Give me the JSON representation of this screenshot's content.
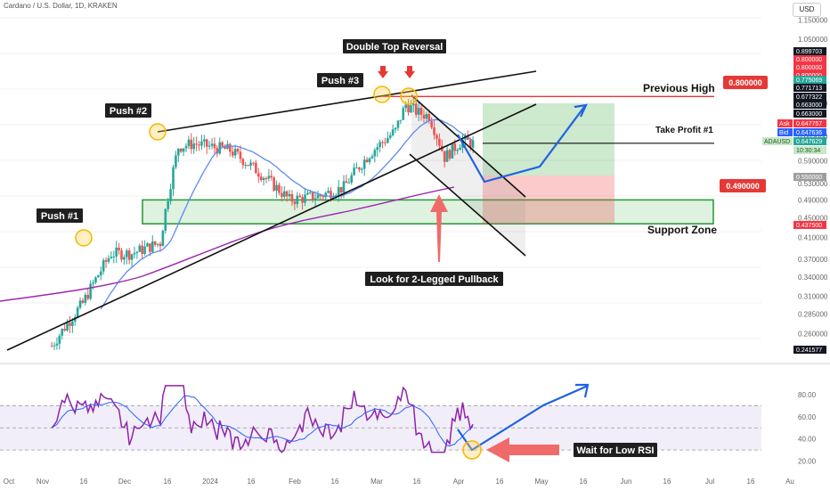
{
  "header": {
    "symbol_title": "Cardano / U.S. Dollar, 1D, KRAKEN",
    "currency_button": "USD"
  },
  "colors": {
    "candle_up": "#26a69a",
    "candle_down": "#ef5350",
    "ma_fast": "#5b8def",
    "ma_slow": "#9c27b0",
    "rsi_line": "#8e24aa",
    "rsi_signal": "#2962ff",
    "support_zone": "#2e9e3e",
    "resistance": "#e53935",
    "projection_arrow": "#1e63e0",
    "callout_bg": "#1f1f1f",
    "highlight_circle": "#f5b800"
  },
  "chart_data": [
    {
      "type": "candlestick",
      "title": "Cardano / U.S. Dollar, 1D, KRAKEN",
      "price_scale": "log",
      "ylim": [
        0.235,
        1.2
      ],
      "y_ticks": [
        "1.150000",
        "1.050000",
        "0.775069",
        "0.663000",
        "0.590000",
        "0.530000",
        "0.490000",
        "0.450000",
        "0.410000",
        "0.370000",
        "0.340000",
        "0.310000",
        "0.285000",
        "0.260000"
      ],
      "x_ticks": [
        "Oct",
        "Nov",
        "16",
        "Dec",
        "16",
        "2024",
        "16",
        "Feb",
        "16",
        "Mar",
        "16",
        "Apr",
        "16",
        "May",
        "16",
        "Jun",
        "16",
        "Jul",
        "16",
        "Au"
      ],
      "price_path": [
        [
          "2023-10-20",
          0.245
        ],
        [
          "2023-11-01",
          0.3
        ],
        [
          "2023-11-12",
          0.38
        ],
        [
          "2023-11-20",
          0.38
        ],
        [
          "2023-12-01",
          0.4
        ],
        [
          "2023-12-08",
          0.63
        ],
        [
          "2023-12-14",
          0.64
        ],
        [
          "2023-12-28",
          0.62
        ],
        [
          "2024-01-08",
          0.56
        ],
        [
          "2024-01-20",
          0.49
        ],
        [
          "2024-02-01",
          0.5
        ],
        [
          "2024-02-10",
          0.52
        ],
        [
          "2024-02-20",
          0.61
        ],
        [
          "2024-03-01",
          0.68
        ],
        [
          "2024-03-05",
          0.77
        ],
        [
          "2024-03-10",
          0.74
        ],
        [
          "2024-03-14",
          0.73
        ],
        [
          "2024-03-20",
          0.6
        ],
        [
          "2024-03-27",
          0.65
        ],
        [
          "2024-03-31",
          0.64
        ]
      ],
      "badges": [
        {
          "label": "",
          "value": "0.899703",
          "kind": "dark"
        },
        {
          "label": "",
          "value": "0.800000",
          "kind": "red"
        },
        {
          "label": "",
          "value": "0.800000",
          "kind": "red"
        },
        {
          "label": "",
          "value": "0.800000",
          "kind": "red"
        },
        {
          "label": "",
          "value": "0.775069",
          "kind": "green"
        },
        {
          "label": "",
          "value": "0.771713",
          "kind": "dark"
        },
        {
          "label": "",
          "value": "0.677322",
          "kind": "dark"
        },
        {
          "label": "",
          "value": "0.663000",
          "kind": "dark"
        },
        {
          "label": "",
          "value": "0.663000",
          "kind": "dark"
        },
        {
          "label": "Ask",
          "value": "0.647757",
          "kind": "red"
        },
        {
          "label": "Bid",
          "value": "0.647636",
          "kind": "blue"
        },
        {
          "label": "ADAUSD",
          "value": "0.647629",
          "kind": "green"
        },
        {
          "label": "",
          "value": "10:30:34",
          "kind": "green-light"
        },
        {
          "label": "",
          "value": "0.550000",
          "kind": "gray"
        },
        {
          "label": "",
          "value": "0.437500",
          "kind": "red"
        },
        {
          "label": "",
          "value": "0.241577",
          "kind": "dark"
        }
      ],
      "annotations": [
        {
          "text": "Push #1"
        },
        {
          "text": "Push #2"
        },
        {
          "text": "Push #3"
        },
        {
          "text": "Double Top Reversal"
        },
        {
          "text": "Look for 2-Legged Pullback"
        },
        {
          "text": "Previous High"
        },
        {
          "text": "Take Profit #1"
        },
        {
          "text": "Support Zone"
        },
        {
          "text": "0.800000"
        },
        {
          "text": "0.490000"
        }
      ],
      "previous_high": 0.8,
      "support_zone": [
        0.4375,
        0.49
      ],
      "take_profit": 0.663,
      "trade_box": {
        "entry": 0.55,
        "target": 0.775,
        "stop": 0.4375
      }
    },
    {
      "type": "line",
      "ylim": [
        10,
        100
      ],
      "y_ticks": [
        "80.00",
        "60.00",
        "40.00",
        "20.00"
      ],
      "bands": [
        30,
        50,
        70
      ],
      "callout": "Wait for Low RSI"
    }
  ]
}
